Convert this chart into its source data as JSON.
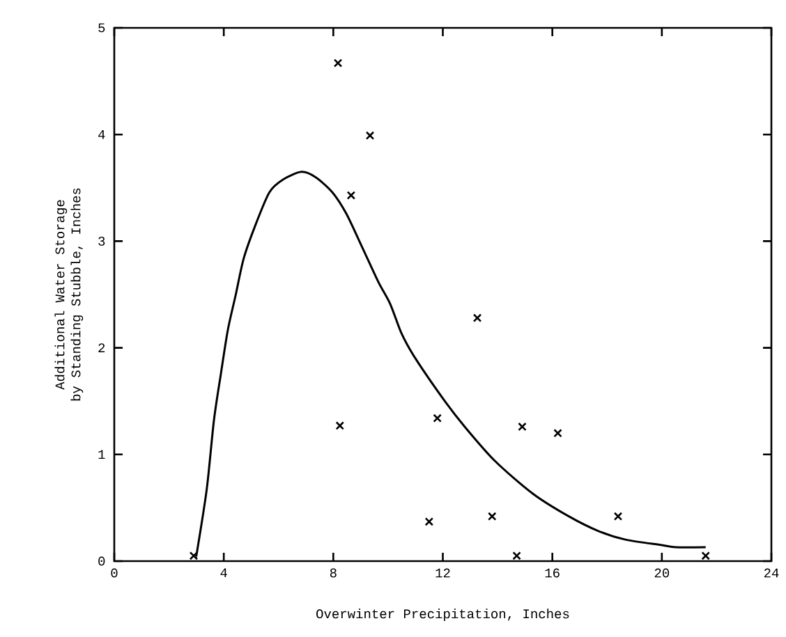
{
  "chart_data": {
    "type": "scatter",
    "xlabel": "Overwinter Precipitation, Inches",
    "ylabel": "Additional Water Storage by Standing Stubble, Inches",
    "xlim": [
      0,
      24
    ],
    "ylim": [
      0,
      5
    ],
    "xticks": [
      0,
      4,
      8,
      12,
      16,
      20,
      24
    ],
    "yticks": [
      0,
      1,
      2,
      3,
      4,
      5
    ],
    "marker": "cross",
    "series": [
      {
        "color": "#000000",
        "x": [
          2.9,
          8.17,
          9.34,
          8.65,
          8.24,
          11.8,
          11.5,
          13.26,
          13.8,
          14.9,
          14.7,
          16.2,
          18.4,
          21.6
        ],
        "values": [
          0.05,
          4.67,
          3.99,
          3.43,
          1.27,
          1.34,
          0.37,
          2.28,
          0.42,
          1.26,
          0.05,
          1.2,
          0.42,
          0.05
        ]
      },
      {
        "type": "line",
        "marker": "none",
        "color": "#000000",
        "x": [
          2.98,
          3.03,
          3.38,
          3.64,
          3.89,
          4.15,
          4.43,
          4.73,
          5.17,
          5.67,
          6.18,
          6.84,
          7.35,
          7.96,
          8.47,
          9.06,
          9.64,
          10.08,
          10.5,
          11.0,
          12.1,
          12.8,
          13.9,
          15.3,
          16.6,
          17.7,
          18.7,
          20.0,
          20.5,
          21.6
        ],
        "values": [
          0.04,
          0.1,
          0.68,
          1.32,
          1.75,
          2.17,
          2.49,
          2.84,
          3.16,
          3.46,
          3.58,
          3.65,
          3.6,
          3.46,
          3.26,
          2.94,
          2.62,
          2.41,
          2.13,
          1.9,
          1.49,
          1.26,
          0.94,
          0.63,
          0.42,
          0.28,
          0.2,
          0.15,
          0.13,
          0.13
        ]
      }
    ]
  }
}
